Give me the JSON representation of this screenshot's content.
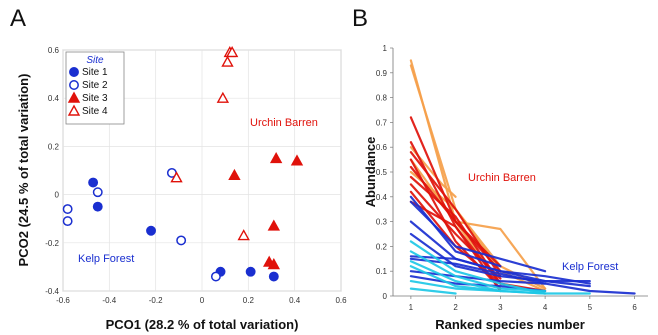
{
  "chart_data": [
    {
      "panel": "A",
      "type": "scatter",
      "xlabel": "PCO1 (28.2 % of total variation)",
      "ylabel": "PCO2 (24.5 % of total variation)",
      "xlim": [
        -0.6,
        0.6
      ],
      "ylim": [
        -0.4,
        0.6
      ],
      "xticks": [
        "-0.6",
        "-0.4",
        "-0.2",
        "0",
        "0.2",
        "0.4",
        "0.6"
      ],
      "yticks": [
        "-0.4",
        "-0.2",
        "0",
        "0.2",
        "0.4",
        "0.6"
      ],
      "legend": {
        "title": "Site",
        "position": "top-left"
      },
      "series": [
        {
          "name": "Site 1",
          "marker": "circle",
          "filled": true,
          "color": "#1a2fd0",
          "points": [
            [
              -0.47,
              0.05
            ],
            [
              -0.45,
              -0.05
            ],
            [
              -0.22,
              -0.15
            ],
            [
              0.08,
              -0.32
            ],
            [
              0.21,
              -0.32
            ],
            [
              0.31,
              -0.34
            ]
          ]
        },
        {
          "name": "Site 2",
          "marker": "circle",
          "filled": false,
          "color": "#1a2fd0",
          "points": [
            [
              -0.58,
              -0.06
            ],
            [
              -0.58,
              -0.11
            ],
            [
              -0.45,
              0.01
            ],
            [
              -0.13,
              0.09
            ],
            [
              -0.09,
              -0.19
            ],
            [
              0.06,
              -0.34
            ]
          ]
        },
        {
          "name": "Site 3",
          "marker": "triangle",
          "filled": true,
          "color": "#e0120b",
          "points": [
            [
              0.14,
              0.08
            ],
            [
              0.32,
              0.15
            ],
            [
              0.41,
              0.14
            ],
            [
              0.31,
              -0.13
            ],
            [
              0.29,
              -0.28
            ],
            [
              0.31,
              -0.29
            ]
          ]
        },
        {
          "name": "Site 4",
          "marker": "triangle",
          "filled": false,
          "color": "#e0120b",
          "points": [
            [
              0.12,
              0.59
            ],
            [
              0.13,
              0.59
            ],
            [
              0.11,
              0.55
            ],
            [
              0.09,
              0.4
            ],
            [
              -0.11,
              0.07
            ],
            [
              0.18,
              -0.17
            ]
          ]
        }
      ],
      "annotations": [
        {
          "text": "Urchin Barren",
          "color": "#e0120b"
        },
        {
          "text": "Kelp Forest",
          "color": "#1a2fd0"
        }
      ]
    },
    {
      "panel": "B",
      "type": "line",
      "xlabel": "Ranked species number",
      "ylabel": "Abundance",
      "xlim": [
        0.6,
        6.3
      ],
      "ylim": [
        0,
        1
      ],
      "xticks": [
        "1",
        "2",
        "3",
        "4",
        "5",
        "6"
      ],
      "yticks": [
        "0",
        "0.1",
        "0.2",
        "0.3",
        "0.4",
        "0.5",
        "0.6",
        "0.7",
        "0.8",
        "0.9",
        "1"
      ],
      "series": [
        {
          "color": "#f5a04a",
          "x": [
            1,
            2,
            3,
            4
          ],
          "y": [
            0.95,
            0.3,
            0.27,
            0.03
          ]
        },
        {
          "color": "#f5a04a",
          "x": [
            1,
            2,
            3,
            4
          ],
          "y": [
            0.93,
            0.35,
            0.1,
            0.02
          ]
        },
        {
          "color": "#f5a04a",
          "x": [
            1,
            1.7,
            2
          ],
          "y": [
            0.6,
            0.45,
            0.4
          ]
        },
        {
          "color": "#f5a04a",
          "x": [
            1,
            2,
            3
          ],
          "y": [
            0.55,
            0.3,
            0.05
          ]
        },
        {
          "color": "#f5a04a",
          "x": [
            1,
            2,
            3,
            4
          ],
          "y": [
            0.5,
            0.35,
            0.12,
            0.03
          ]
        },
        {
          "color": "#e0120b",
          "x": [
            1,
            2,
            3
          ],
          "y": [
            0.72,
            0.3,
            0.1
          ]
        },
        {
          "color": "#e0120b",
          "x": [
            1,
            2,
            3
          ],
          "y": [
            0.62,
            0.28,
            0.05
          ]
        },
        {
          "color": "#e0120b",
          "x": [
            1,
            2,
            3
          ],
          "y": [
            0.58,
            0.35,
            0.08
          ]
        },
        {
          "color": "#e0120b",
          "x": [
            1,
            2,
            3
          ],
          "y": [
            0.55,
            0.22,
            0.03
          ]
        },
        {
          "color": "#e0120b",
          "x": [
            1,
            2,
            3
          ],
          "y": [
            0.52,
            0.3,
            0.12
          ]
        },
        {
          "color": "#e0120b",
          "x": [
            1,
            2,
            3,
            4
          ],
          "y": [
            0.48,
            0.32,
            0.05,
            0.02
          ]
        },
        {
          "color": "#e0120b",
          "x": [
            1,
            2,
            3
          ],
          "y": [
            0.45,
            0.25,
            0.07
          ]
        },
        {
          "color": "#e0120b",
          "x": [
            1,
            2,
            3
          ],
          "y": [
            0.42,
            0.2,
            0.05
          ]
        },
        {
          "color": "#e0120b",
          "x": [
            1,
            2,
            3
          ],
          "y": [
            0.38,
            0.28,
            0.02
          ]
        },
        {
          "color": "#1a2fd0",
          "x": [
            1,
            2,
            3
          ],
          "y": [
            0.4,
            0.18,
            0.12
          ]
        },
        {
          "color": "#1a2fd0",
          "x": [
            1,
            2,
            3,
            4
          ],
          "y": [
            0.38,
            0.2,
            0.15,
            0.1
          ]
        },
        {
          "color": "#1a2fd0",
          "x": [
            1,
            2,
            3,
            4,
            5
          ],
          "y": [
            0.3,
            0.15,
            0.1,
            0.08,
            0.05
          ]
        },
        {
          "color": "#1a2fd0",
          "x": [
            1,
            2,
            3,
            4,
            5
          ],
          "y": [
            0.25,
            0.12,
            0.08,
            0.06,
            0.06
          ]
        },
        {
          "color": "#1a2fd0",
          "x": [
            1,
            2,
            3,
            4,
            5
          ],
          "y": [
            0.16,
            0.15,
            0.1,
            0.06,
            0.04
          ]
        },
        {
          "color": "#1a2fd0",
          "x": [
            1,
            2,
            3,
            4,
            5,
            6
          ],
          "y": [
            0.15,
            0.13,
            0.09,
            0.05,
            0.02,
            0.01
          ]
        },
        {
          "color": "#1a2fd0",
          "x": [
            1,
            2,
            3,
            4
          ],
          "y": [
            0.1,
            0.08,
            0.06,
            0.05
          ]
        },
        {
          "color": "#1a2fd0",
          "x": [
            1,
            2,
            3,
            4
          ],
          "y": [
            0.08,
            0.05,
            0.04,
            0.02
          ]
        },
        {
          "color": "#1ec8e6",
          "x": [
            1,
            2,
            3,
            4
          ],
          "y": [
            0.22,
            0.1,
            0.05,
            0.01
          ]
        },
        {
          "color": "#1ec8e6",
          "x": [
            1,
            2,
            3,
            4
          ],
          "y": [
            0.18,
            0.08,
            0.03,
            0.02
          ]
        },
        {
          "color": "#1ec8e6",
          "x": [
            1,
            2,
            3
          ],
          "y": [
            0.14,
            0.06,
            0.02
          ]
        },
        {
          "color": "#1ec8e6",
          "x": [
            1,
            2,
            3,
            4,
            5
          ],
          "y": [
            0.12,
            0.04,
            0.02,
            0.01,
            0.01
          ]
        },
        {
          "color": "#1ec8e6",
          "x": [
            1,
            2,
            3,
            4
          ],
          "y": [
            0.06,
            0.03,
            0.02,
            0.01
          ]
        },
        {
          "color": "#1ec8e6",
          "x": [
            1,
            2
          ],
          "y": [
            0.03,
            0.01
          ]
        }
      ],
      "annotations": [
        {
          "text": "Urchin Barren",
          "color": "#e0120b"
        },
        {
          "text": "Kelp Forest",
          "color": "#1a2fd0"
        }
      ]
    }
  ],
  "panel_labels": [
    "A",
    "B"
  ]
}
